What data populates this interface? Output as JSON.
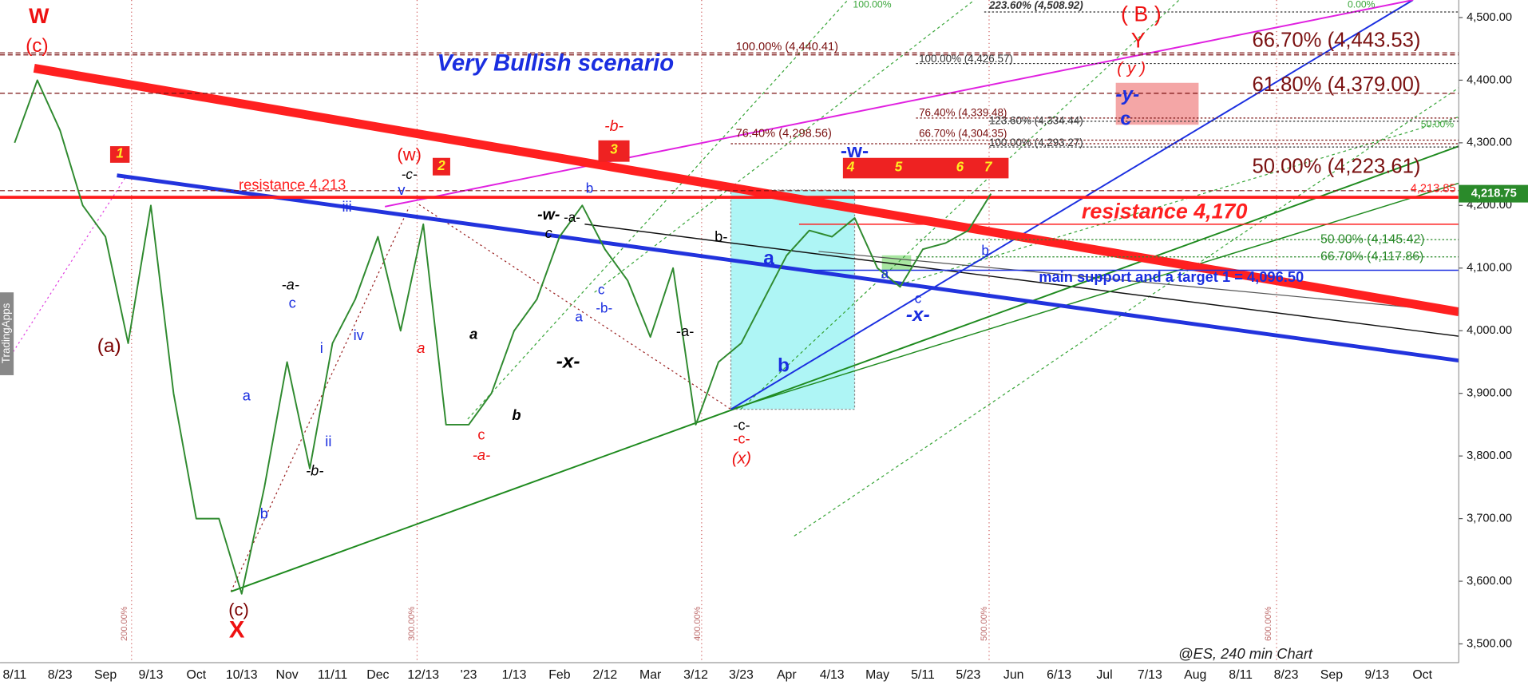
{
  "chart_data": {
    "type": "line",
    "title": "Very Bullish scenario",
    "source": "@ES, 240 min Chart",
    "brand": "TradingApps",
    "categories": [
      "8/11",
      null,
      "8/23",
      null,
      "Sep",
      null,
      "9/13",
      null,
      "Oct",
      null,
      "10/13",
      null,
      "Nov",
      null,
      "11/11",
      null,
      "Dec",
      null,
      "12/13",
      null,
      "'23",
      null,
      "1/13",
      null,
      "Feb",
      null,
      "2/12",
      null,
      "Mar",
      null,
      "3/12",
      null,
      "3/23",
      null,
      "Apr",
      null,
      "4/13",
      null,
      "May",
      null,
      "5/11",
      null,
      "5/23",
      null,
      "Jun",
      null,
      "6/13",
      null,
      "Jul",
      null,
      "7/13",
      null,
      "Aug",
      null,
      "8/11",
      null,
      "8/23",
      null,
      "Sep",
      null,
      "9/13",
      null,
      "Oct",
      null
    ],
    "series": [
      {
        "name": "ES",
        "color": "#2f8a2f",
        "values": [
          4300,
          4400,
          4320,
          4200,
          4150,
          3980,
          4200,
          3900,
          3700,
          3700,
          3580,
          3750,
          3950,
          3780,
          3980,
          4050,
          4150,
          4000,
          4170,
          3850,
          3850,
          3900,
          4000,
          4050,
          4150,
          4200,
          4130,
          4080,
          3990,
          4100,
          3850,
          3950,
          3980,
          4050,
          4120,
          4160,
          4150,
          4180,
          4100,
          4070,
          4130,
          4140,
          4160,
          4218.75,
          null,
          null,
          null,
          null,
          null,
          null,
          null,
          null,
          null,
          null,
          null,
          null,
          null,
          null,
          null,
          null,
          null,
          null,
          null,
          null
        ]
      }
    ],
    "ylim": [
      3470,
      4528
    ],
    "yticks": [
      {
        "value": 3500,
        "label": "3,500.00"
      },
      {
        "value": 3600,
        "label": "3,600.00"
      },
      {
        "value": 3700,
        "label": "3,700.00"
      },
      {
        "value": 3800,
        "label": "3,800.00"
      },
      {
        "value": 3900,
        "label": "3,900.00"
      },
      {
        "value": 4000,
        "label": "4,000.00"
      },
      {
        "value": 4100,
        "label": "4,100.00"
      },
      {
        "value": 4200,
        "label": "4,200.00"
      },
      {
        "value": 4300,
        "label": "4,300.00"
      },
      {
        "value": 4400,
        "label": "4,400.00"
      },
      {
        "value": 4500,
        "label": "4,500.00"
      }
    ],
    "levels": [
      {
        "value": 4213,
        "label": "resistance 4,213"
      },
      {
        "value": 4170,
        "label": "resistance 4,170"
      },
      {
        "value": 4096.5,
        "label": "main support and a target 1 = 4,096.50"
      },
      {
        "value": 4223.61,
        "label": "50.00% (4,223.61)"
      },
      {
        "value": 4379,
        "label": "61.80% (4,379.00)"
      },
      {
        "value": 4443.53,
        "label": "66.70% (4,443.53)"
      },
      {
        "value": 4440.41,
        "label": "100.00% (4,440.41)"
      },
      {
        "value": 4298.56,
        "label": "76.40% (4,298.56)"
      },
      {
        "value": 4508.92,
        "label": "223.60% (4,508.92)"
      },
      {
        "value": 4426.57,
        "label": "100.00% (4,426.57)"
      },
      {
        "value": 4304.35,
        "label": "66.70% (4,304.35)"
      },
      {
        "value": 4293.27,
        "label": "100.00% (4,293.27)"
      },
      {
        "value": 4334.44,
        "label": "123.60% (4,334.44)"
      },
      {
        "value": 4339.48,
        "label": "76.40% (4,339.48)"
      },
      {
        "value": 4145.42,
        "label": "50.00% (4,145.42)"
      },
      {
        "value": 4117.86,
        "label": "66.70% (4,117.86)"
      }
    ],
    "price_labels": [
      {
        "value": 4218.75,
        "label": "4,218.75"
      },
      {
        "value": 4213.85,
        "label": "4,213.85"
      }
    ],
    "annotations": [
      "W",
      "(c)",
      "(a)",
      "(c)",
      "X",
      "(w)",
      "-c-",
      "a",
      "a",
      "b",
      "i",
      "ii",
      "iii",
      "iv",
      "v",
      "-a-",
      "c",
      "-b-",
      "a",
      "b",
      "c",
      "-a-",
      "-w-",
      "-a-",
      "c",
      "b",
      "c",
      "-b-",
      "a",
      "-x-",
      "-b-",
      "b-",
      "-a-",
      "-c-",
      "-c-",
      "(x)",
      "a",
      "b",
      "-w-",
      "a",
      "c",
      "-x-",
      "b",
      "( B )",
      "Y",
      "( y )",
      "-y-",
      "c",
      "1",
      "2",
      "3",
      "4",
      "5",
      "6",
      "7",
      "200.00%",
      "300.00%",
      "400.00%",
      "500.00%",
      "600.00%",
      "100.00%",
      "0.00%",
      "50.00%"
    ]
  }
}
